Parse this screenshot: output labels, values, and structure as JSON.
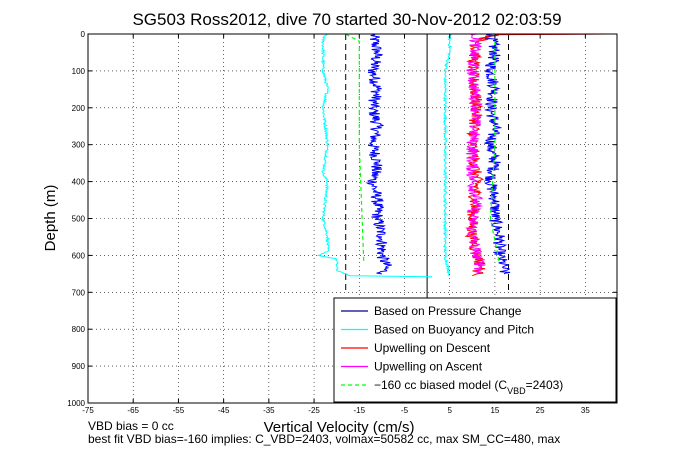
{
  "chart_data": {
    "type": "line",
    "title": "SG503 Ross2012, dive 70 started 30-Nov-2012 02:03:59",
    "xlabel": "Vertical Velocity (cm/s)",
    "ylabel": "Depth (m)",
    "xlim": [
      -75,
      42
    ],
    "ylim": [
      0,
      1000
    ],
    "y_reversed": true,
    "grid": true,
    "x_ticks": [
      -75,
      -65,
      -55,
      -45,
      -35,
      -25,
      -15,
      -5,
      5,
      15,
      25,
      35
    ],
    "y_ticks": [
      0,
      100,
      200,
      300,
      400,
      500,
      600,
      700,
      800,
      900,
      1000
    ],
    "reference_lines": {
      "zero_solid": 0,
      "dashed": [
        -18,
        18
      ]
    },
    "series": [
      {
        "name": "Based on Pressure Change",
        "color": "#0000ff",
        "legend_color": "#00008b",
        "segments": [
          {
            "x": [
              -12,
              -11,
              -12,
              -11,
              -12,
              -11,
              -12,
              -11,
              -12,
              -11,
              -11,
              -10,
              -10,
              -9,
              -10
            ],
            "y": [
              0,
              50,
              100,
              150,
              200,
              250,
              300,
              350,
              400,
              450,
              500,
              550,
              600,
              630,
              650
            ]
          },
          {
            "x": [
              14,
              15,
              14,
              15,
              14,
              15,
              14,
              15,
              14,
              15,
              15,
              16,
              16,
              17,
              17
            ],
            "y": [
              0,
              50,
              100,
              150,
              200,
              250,
              300,
              350,
              400,
              450,
              500,
              550,
              600,
              630,
              650
            ]
          }
        ]
      },
      {
        "name": "Based on Buoyancy and Pitch",
        "color": "#00ffff",
        "segments": [
          {
            "x": [
              -22,
              -23,
              -23,
              -22,
              -23,
              -22,
              -23,
              -22,
              -23,
              -22,
              -22,
              -24,
              -20,
              -20,
              -17,
              1,
              1
            ],
            "y": [
              0,
              10,
              100,
              150,
              200,
              300,
              380,
              400,
              500,
              550,
              590,
              600,
              610,
              640,
              655,
              658,
              660
            ]
          },
          {
            "x": [
              5,
              5,
              4,
              4,
              4,
              5
            ],
            "y": [
              0,
              50,
              100,
              300,
              600,
              655
            ]
          }
        ]
      },
      {
        "name": "Upwelling on Descent",
        "color": "#ff0000",
        "segments": [
          {
            "x": [
              40,
              30,
              15,
              11,
              10,
              11,
              10,
              11,
              10,
              10,
              11,
              12,
              11,
              10
            ],
            "y": [
              0,
              1,
              2,
              20,
              100,
              200,
              300,
              400,
              500,
              550,
              600,
              630,
              650,
              655
            ]
          }
        ]
      },
      {
        "name": "Upwelling on Ascent",
        "color": "#ff00ff",
        "segments": [
          {
            "x": [
              11,
              10,
              11,
              10,
              10,
              11,
              10,
              10,
              11,
              12,
              11
            ],
            "y": [
              0,
              100,
              200,
              300,
              400,
              450,
              500,
              550,
              600,
              630,
              650
            ]
          }
        ]
      },
      {
        "name": "−160 cc biased model (C",
        "name_subscript": "VBD",
        "name_suffix": "=2403)",
        "color": "#00ff00",
        "dashed": true,
        "segments": [
          {
            "x": [
              -18,
              -15,
              -15,
              -14
            ],
            "y": [
              0,
              20,
              300,
              620
            ]
          },
          {
            "x": [
              15,
              15,
              14,
              16
            ],
            "y": [
              0,
              300,
              500,
              620
            ]
          }
        ]
      }
    ],
    "legend_position": "lower-right",
    "annotations": [
      "VBD bias = 0 cc",
      "best fit VBD bias=-160 implies: C_VBD=2403, volmax=50582 cc, max SM_CC=480, max"
    ]
  }
}
